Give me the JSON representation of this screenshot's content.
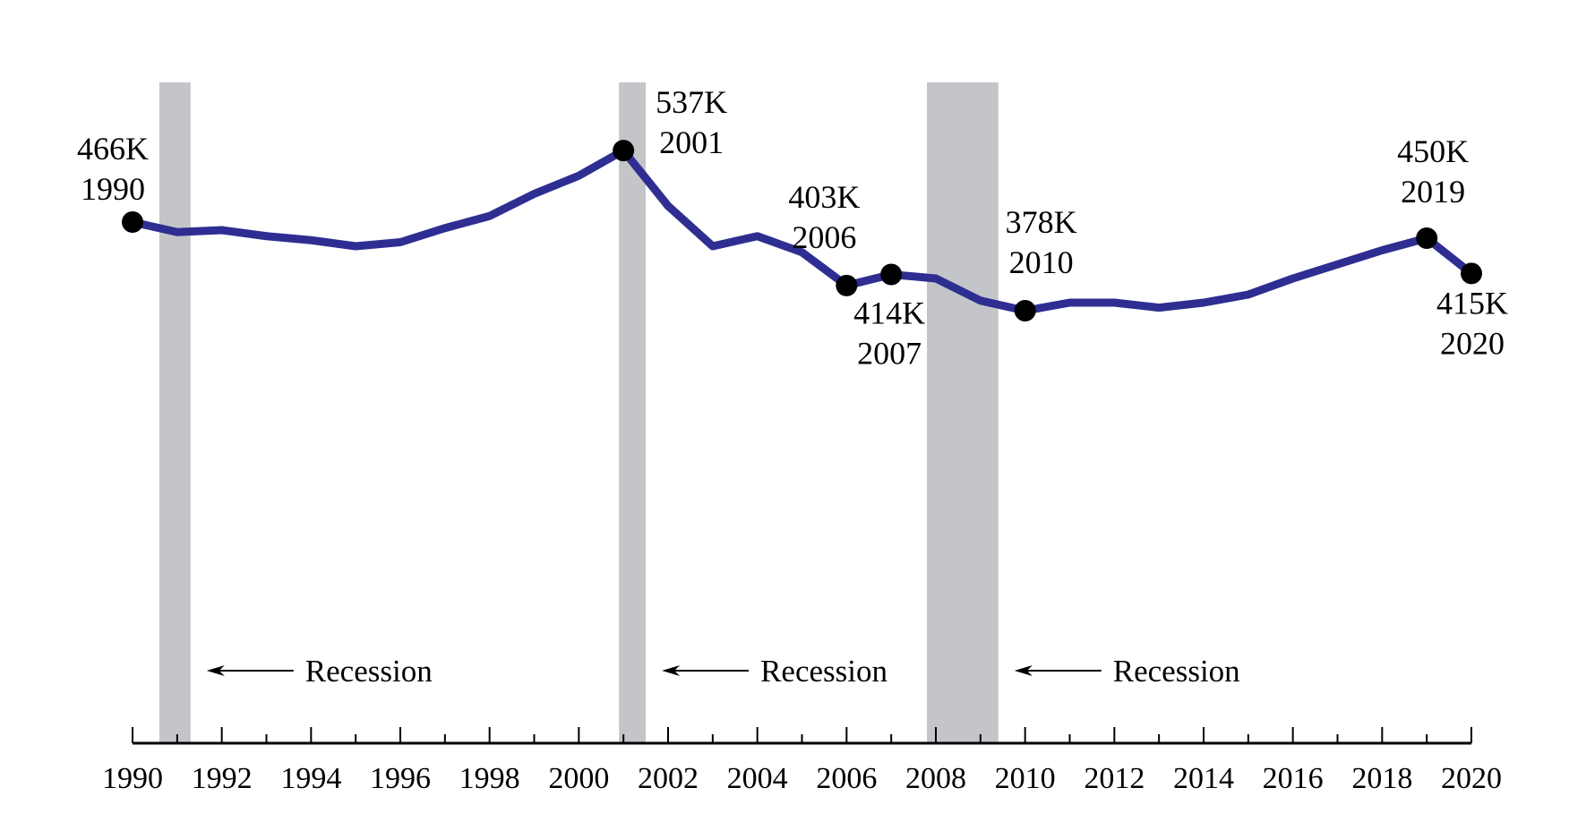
{
  "chart_data": {
    "type": "line",
    "title": "",
    "xlabel": "",
    "ylabel": "",
    "xlim": [
      1990,
      2020
    ],
    "x_ticks": [
      "1990",
      "1992",
      "1994",
      "1996",
      "1998",
      "2000",
      "2002",
      "2004",
      "2006",
      "2008",
      "2010",
      "2012",
      "2014",
      "2016",
      "2018",
      "2020"
    ],
    "line_color": "#2e2e92",
    "recession_color": "#c4c5c8",
    "marker_color": "#000000",
    "grid": false,
    "series": [
      {
        "x": [
          1990,
          1991,
          1992,
          1993,
          1994,
          1995,
          1996,
          1997,
          1998,
          1999,
          2000,
          2001,
          2002,
          2003,
          2004,
          2005,
          2006,
          2007,
          2008,
          2009,
          2010,
          2011,
          2012,
          2013,
          2014,
          2015,
          2016,
          2017,
          2018,
          2019,
          2020
        ],
        "y": [
          466,
          456,
          458,
          452,
          448,
          442,
          446,
          460,
          472,
          494,
          512,
          537,
          482,
          442,
          452,
          436,
          403,
          414,
          410,
          388,
          378,
          386,
          386,
          381,
          386,
          394,
          410,
          424,
          438,
          450,
          415
        ]
      }
    ],
    "recessions": [
      {
        "start": 1990.6,
        "end": 1991.3,
        "label": "Recession"
      },
      {
        "start": 2000.9,
        "end": 2001.5,
        "label": "Recession"
      },
      {
        "start": 2007.8,
        "end": 2009.4,
        "label": "Recession"
      }
    ],
    "annotations": [
      {
        "x": 1990,
        "value": "466K",
        "year": "1990"
      },
      {
        "x": 2001,
        "value": "537K",
        "year": "2001"
      },
      {
        "x": 2006,
        "value": "403K",
        "year": "2006"
      },
      {
        "x": 2007,
        "value": "414K",
        "year": "2007"
      },
      {
        "x": 2010,
        "value": "378K",
        "year": "2010"
      },
      {
        "x": 2019,
        "value": "450K",
        "year": "2019"
      },
      {
        "x": 2020,
        "value": "415K",
        "year": "2020"
      }
    ]
  }
}
